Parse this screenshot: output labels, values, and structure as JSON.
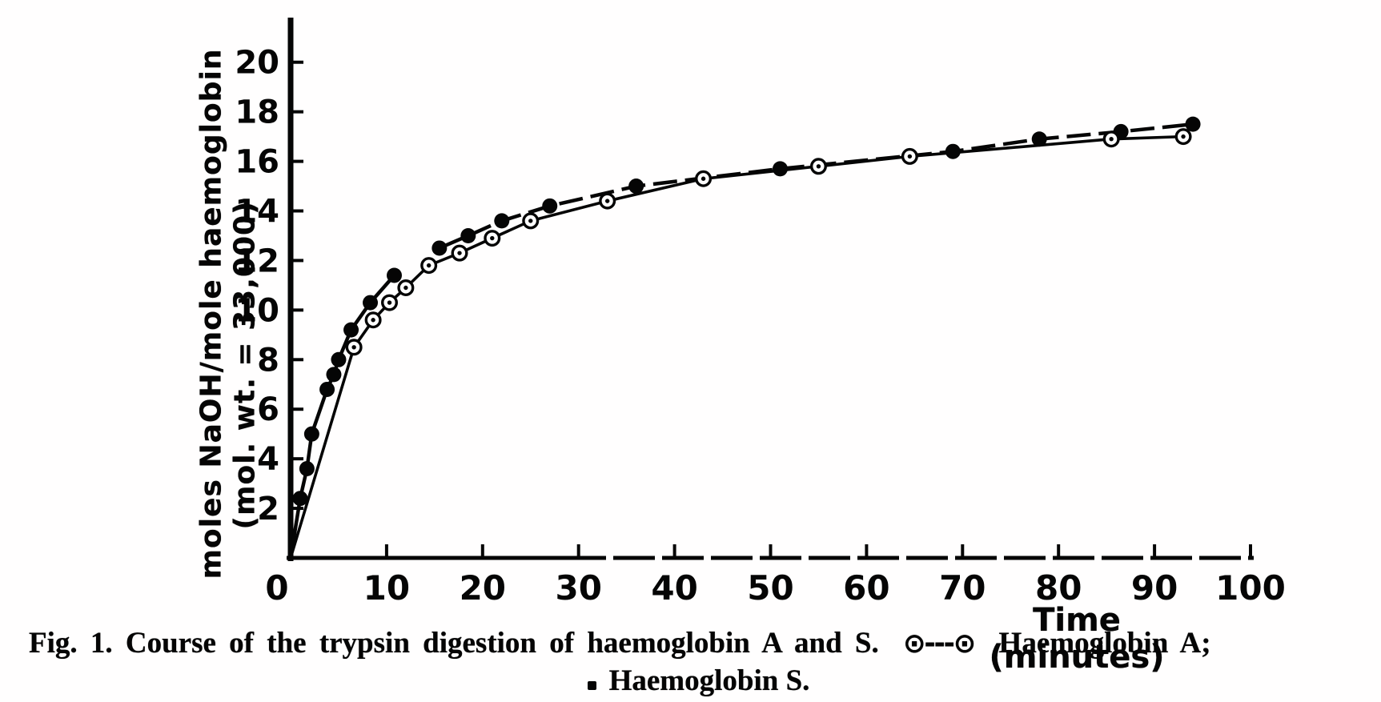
{
  "figure": {
    "caption_line1_prefix": "Fig. 1. Course of the trypsin digestion of haemoglobin A and S.",
    "legend_a_symbol": "⊙---⊙",
    "caption_line1_suffix": "Haemoglobin A;",
    "caption_line2": "Haemoglobin S."
  },
  "chart_data": {
    "type": "line",
    "title": "Course of the trypsin digestion of haemoglobin A and S",
    "xlabel": "Time (minutes)",
    "ylabel_line1": "moles NaOH/mole haemoglobin",
    "ylabel_line2": "(mol. wt. = 33,000)",
    "xlim": [
      0,
      100
    ],
    "ylim": [
      0,
      21.8
    ],
    "x_ticks": [
      0,
      10,
      20,
      30,
      40,
      50,
      60,
      70,
      80,
      90,
      100
    ],
    "y_ticks": [
      2,
      4,
      6,
      8,
      10,
      12,
      14,
      16,
      18,
      20
    ],
    "grid": false,
    "legend_position": "in-caption",
    "ink_color": "#050505",
    "series": [
      {
        "name": "Haemoglobin S",
        "marker": "filled-circle",
        "line_style": "solid-then-dashed",
        "line_solid_until": 11,
        "line_start": [
          0,
          0
        ],
        "points": [
          [
            1,
            2.4
          ],
          [
            1.7,
            3.6
          ],
          [
            2.2,
            5.0
          ],
          [
            3.8,
            6.8
          ],
          [
            4.5,
            7.4
          ],
          [
            5,
            8.0
          ],
          [
            6.3,
            9.2
          ],
          [
            8.3,
            10.3
          ],
          [
            10.8,
            11.4
          ],
          [
            15.5,
            12.5
          ],
          [
            18.5,
            13.0
          ],
          [
            22,
            13.6
          ],
          [
            27,
            14.2
          ],
          [
            36,
            15.0
          ],
          [
            51,
            15.7
          ],
          [
            69,
            16.4
          ],
          [
            78,
            16.9
          ],
          [
            86.5,
            17.2
          ],
          [
            94,
            17.5
          ]
        ]
      },
      {
        "name": "Haemoglobin A",
        "marker": "open-circle-dot",
        "line_style": "solid",
        "line_start": [
          0,
          0
        ],
        "points": [
          [
            6.6,
            8.5
          ],
          [
            8.6,
            9.6
          ],
          [
            10.3,
            10.3
          ],
          [
            12,
            10.9
          ],
          [
            14.4,
            11.8
          ],
          [
            17.6,
            12.3
          ],
          [
            21,
            12.9
          ],
          [
            25,
            13.6
          ],
          [
            33,
            14.4
          ],
          [
            43,
            15.3
          ],
          [
            55,
            15.8
          ],
          [
            64.5,
            16.2
          ],
          [
            85.5,
            16.9
          ],
          [
            93,
            17.0
          ]
        ]
      }
    ]
  }
}
